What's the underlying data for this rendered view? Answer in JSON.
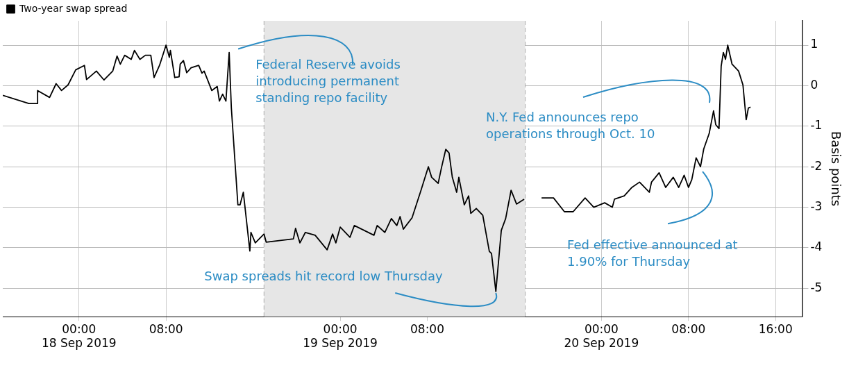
{
  "chart_data": {
    "type": "line",
    "ylabel": "Basis points",
    "x": [
      "2019-09-17T17:00",
      "2019-09-17T19:24",
      "2019-09-17T20:12",
      "2019-09-17T20:12",
      "2019-09-17T21:18",
      "2019-09-17T21:54",
      "2019-09-17T22:24",
      "2019-09-17T23:00",
      "2019-09-17T23:42",
      "2019-09-18T00:30",
      "2019-09-18T00:42",
      "2019-09-18T01:36",
      "2019-09-18T02:18",
      "2019-09-18T03:06",
      "2019-09-18T03:30",
      "2019-09-18T03:48",
      "2019-09-18T04:12",
      "2019-09-18T04:48",
      "2019-09-18T05:06",
      "2019-09-18T05:36",
      "2019-09-18T06:06",
      "2019-09-18T06:36",
      "2019-09-18T06:54",
      "2019-09-18T07:24",
      "2019-09-18T08:00",
      "2019-09-18T08:18",
      "2019-09-18T08:24",
      "2019-09-18T08:48",
      "2019-09-18T09:12",
      "2019-09-18T09:18",
      "2019-09-18T09:36",
      "2019-09-18T09:54",
      "2019-09-18T10:18",
      "2019-09-18T11:00",
      "2019-09-18T11:18",
      "2019-09-18T11:30",
      "2019-09-18T12:12",
      "2019-09-18T12:42",
      "2019-09-18T12:54",
      "2019-09-18T13:12",
      "2019-09-18T13:30",
      "2019-09-18T13:48",
      "2019-09-18T14:00",
      "2019-09-18T14:36",
      "2019-09-18T14:48",
      "2019-09-18T15:06",
      "2019-09-18T15:42",
      "2019-09-18T15:48",
      "2019-09-18T16:12",
      "2019-09-18T16:42",
      "2019-09-18T17:00",
      "2019-09-18T17:12",
      "2019-09-18T19:42",
      "2019-09-18T19:54",
      "2019-09-18T20:18",
      "2019-09-18T20:48",
      "2019-09-18T21:42",
      "2019-09-18T22:48",
      "2019-09-18T23:18",
      "2019-09-18T23:36",
      "2019-09-19T00:00",
      "2019-09-19T00:54",
      "2019-09-19T01:18",
      "2019-09-19T02:12",
      "2019-09-19T03:06",
      "2019-09-19T03:24",
      "2019-09-19T04:06",
      "2019-09-19T04:42",
      "2019-09-19T05:12",
      "2019-09-19T05:30",
      "2019-09-19T05:48",
      "2019-09-19T06:36",
      "2019-09-19T07:24",
      "2019-09-19T08:06",
      "2019-09-19T08:24",
      "2019-09-19T09:00",
      "2019-09-19T09:18",
      "2019-09-19T09:42",
      "2019-09-19T10:00",
      "2019-09-19T10:18",
      "2019-09-19T10:42",
      "2019-09-19T10:54",
      "2019-09-19T11:24",
      "2019-09-19T11:48",
      "2019-09-19T12:00",
      "2019-09-19T12:30",
      "2019-09-19T13:06",
      "2019-09-19T13:42",
      "2019-09-19T13:54",
      "2019-09-19T14:18",
      "2019-09-19T14:48",
      "2019-09-19T15:12",
      "2019-09-19T15:42",
      "2019-09-19T16:12",
      "2019-09-19T16:54",
      "2019-09-19T17:42",
      "2019-09-19T18:30",
      "2019-09-19T19:36",
      "2019-09-19T20:36",
      "2019-09-19T21:24",
      "2019-09-19T22:30",
      "2019-09-19T23:18",
      "2019-09-20T00:18",
      "2019-09-20T01:00",
      "2019-09-20T01:12",
      "2019-09-20T02:06",
      "2019-09-20T02:48",
      "2019-09-20T03:30",
      "2019-09-20T04:24",
      "2019-09-20T04:36",
      "2019-09-20T05:18",
      "2019-09-20T05:54",
      "2019-09-20T06:36",
      "2019-09-20T07:06",
      "2019-09-20T07:36",
      "2019-09-20T08:00",
      "2019-09-20T08:18",
      "2019-09-20T08:42",
      "2019-09-20T09:06",
      "2019-09-20T09:24",
      "2019-09-20T09:54",
      "2019-09-20T10:18",
      "2019-09-20T10:30",
      "2019-09-20T10:48",
      "2019-09-20T11:00",
      "2019-09-20T11:12",
      "2019-09-20T11:24",
      "2019-09-20T11:36",
      "2019-09-20T12:00",
      "2019-09-20T12:36",
      "2019-09-20T13:00",
      "2019-09-20T13:18",
      "2019-09-20T13:30",
      "2019-09-20T13:42"
    ],
    "series": [
      {
        "name": "Two-year swap spread",
        "color": "#000000",
        "values": [
          -0.24,
          -0.44,
          -0.44,
          -0.12,
          -0.29,
          0.05,
          -0.12,
          0.02,
          0.39,
          0.5,
          0.15,
          0.36,
          0.14,
          0.36,
          0.73,
          0.53,
          0.75,
          0.65,
          0.87,
          0.65,
          0.75,
          0.75,
          0.2,
          0.5,
          1.0,
          0.7,
          0.87,
          0.2,
          0.22,
          0.53,
          0.62,
          0.32,
          0.44,
          0.5,
          0.31,
          0.36,
          -0.12,
          -0.02,
          -0.38,
          -0.21,
          -0.38,
          0.82,
          -0.55,
          -2.94,
          -2.94,
          -2.63,
          -4.08,
          -3.62,
          -3.88,
          -3.74,
          -3.66,
          -3.86,
          -3.78,
          -3.52,
          -3.88,
          -3.62,
          -3.69,
          -4.05,
          -3.66,
          -3.88,
          -3.49,
          -3.74,
          -3.45,
          -3.57,
          -3.69,
          -3.45,
          -3.62,
          -3.28,
          -3.45,
          -3.23,
          -3.54,
          -3.26,
          -2.6,
          -2.0,
          -2.26,
          -2.41,
          -2.03,
          -1.57,
          -1.66,
          -2.26,
          -2.63,
          -2.26,
          -2.94,
          -2.72,
          -3.15,
          -3.03,
          -3.2,
          -4.09,
          -4.14,
          -5.08,
          -3.57,
          -3.28,
          -2.58,
          -2.92,
          -2.8,
          null,
          -2.77,
          -2.77,
          -3.11,
          -3.11,
          -2.77,
          -3.0,
          -2.89,
          -3.0,
          -2.8,
          -2.72,
          -2.51,
          -2.38,
          -2.63,
          -2.38,
          -2.15,
          -2.51,
          -2.26,
          -2.51,
          -2.21,
          -2.51,
          -2.32,
          -1.78,
          -2.0,
          -1.56,
          -1.18,
          -0.62,
          -0.96,
          -1.06,
          0.48,
          0.82,
          0.65,
          1.0,
          0.53,
          0.36,
          0.02,
          -0.84,
          -0.55,
          -0.53
        ]
      }
    ],
    "xlim": [
      "2019-09-17T17:00",
      "2019-09-20T18:30"
    ],
    "xticks": [
      {
        "value": "2019-09-18T00:00",
        "label": "00:00\n18 Sep 2019"
      },
      {
        "value": "2019-09-18T08:00",
        "label": "08:00"
      },
      {
        "value": "2019-09-19T00:00",
        "label": "00:00\n19 Sep 2019"
      },
      {
        "value": "2019-09-19T08:00",
        "label": "08:00"
      },
      {
        "value": "2019-09-20T00:00",
        "label": "00:00\n20 Sep 2019"
      },
      {
        "value": "2019-09-20T08:00",
        "label": "08:00"
      },
      {
        "value": "2019-09-20T16:00",
        "label": "16:00"
      }
    ],
    "ylim": [
      -5.7,
      1.6
    ],
    "yticks": [
      -5,
      -4,
      -3,
      -2,
      -1,
      0,
      1
    ],
    "bands": [
      {
        "axis": "x",
        "from": "2019-09-18T17:00",
        "to": "2019-09-19T17:00",
        "color": "#e6e6e6"
      }
    ],
    "ref_lines": [
      {
        "axis": "x",
        "value": "2019-09-18T17:00",
        "color": "#aaaaaa",
        "line_style": "dashed"
      },
      {
        "axis": "x",
        "value": "2019-09-19T17:00",
        "color": "#aaaaaa",
        "line_style": "dashed"
      }
    ],
    "annotations": [
      {
        "text": "Federal Reserve avoids introducing permanent standing repo facility",
        "x": "2019-09-18T13:48",
        "y": 0.82
      },
      {
        "text": "Swap spreads hit record low Thursday",
        "x": "2019-09-19T14:18",
        "y": -5.08
      },
      "N.Y. Fed announces repo operations through Oct. 10",
      {
        "text": "Fed effective announced at 1.90% for Thursday",
        "x": "2019-09-20T09:06",
        "y": -2.0
      }
    ],
    "grid": true,
    "legend": "top left",
    "marker": "none",
    "line_style": "solid"
  }
}
